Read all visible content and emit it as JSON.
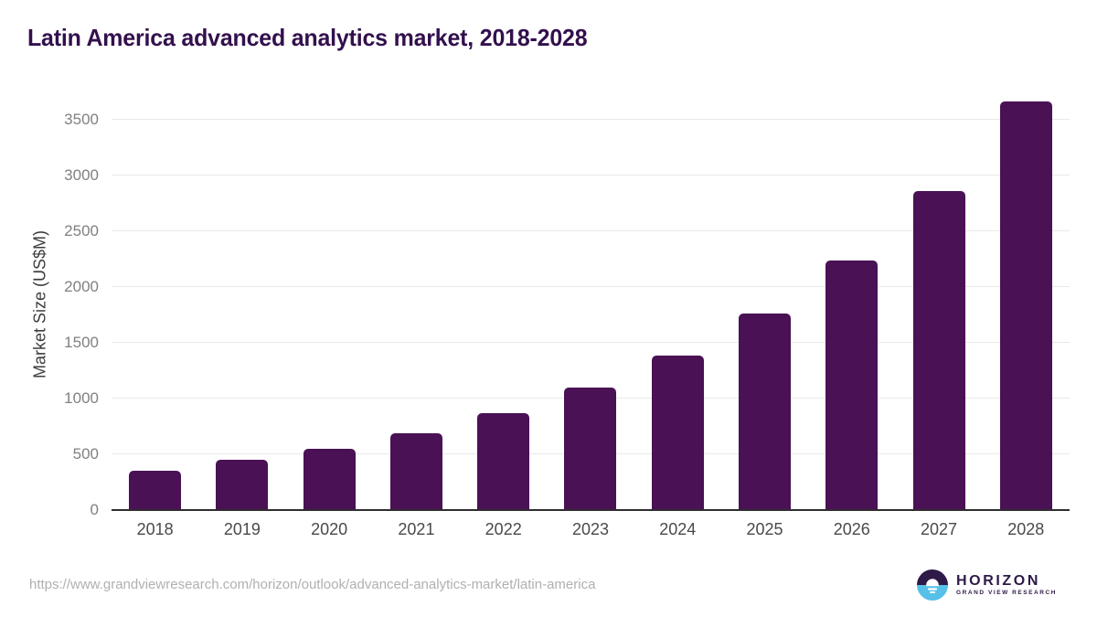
{
  "title": "Latin America advanced analytics market, 2018-2028",
  "chart_data": {
    "type": "bar",
    "title": "Latin America advanced analytics market, 2018-2028",
    "categories": [
      "2018",
      "2019",
      "2020",
      "2021",
      "2022",
      "2023",
      "2024",
      "2025",
      "2026",
      "2027",
      "2028"
    ],
    "values": [
      352,
      448,
      550,
      690,
      867,
      1098,
      1387,
      1762,
      2232,
      2858,
      3662
    ],
    "xlabel": "",
    "ylabel": "Market Size (US$M)",
    "ylim": [
      0,
      3700
    ],
    "yticks": [
      0,
      500,
      1000,
      1500,
      2000,
      2500,
      3000,
      3500
    ],
    "grid": "horizontal",
    "legend": "none",
    "bar_color": "#4a1155"
  },
  "colors": {
    "title": "#33104d",
    "bar": "#4a1155",
    "gridline": "#e9e9e9",
    "baseline": "#2e2e2e",
    "y_tick": "#808080",
    "x_tick": "#4a4a4a",
    "url": "#b0b0b0",
    "logo_purple": "#2e1a47",
    "logo_blue": "#56c0e8"
  },
  "footer": {
    "source_url": "https://www.grandviewresearch.com/horizon/outlook/advanced-analytics-market/latin-america",
    "logo": {
      "brand": "HORIZON",
      "sub_brand": "GRAND VIEW RESEARCH",
      "icon": "horizon-sunset-icon"
    }
  }
}
